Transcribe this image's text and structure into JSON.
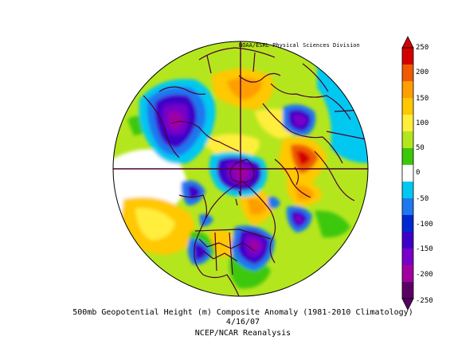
{
  "credit": "NOAA/ESRL Physical Sciences Division",
  "title": {
    "line1": "500mb Geopotential Height (m) Composite Anomaly (1981-2010 Climatology)",
    "line2": "4/16/07",
    "line3": "NCEP/NCAR Reanalysis"
  },
  "colorbar": {
    "labels": [
      "250",
      "200",
      "150",
      "100",
      "50",
      "0",
      "-50",
      "-100",
      "-150",
      "-200",
      "-250"
    ],
    "colors": [
      "#d40000",
      "#f05a00",
      "#ff9e00",
      "#ffc800",
      "#ffee3a",
      "#b4e61e",
      "#3cc80a",
      "#ffffff",
      "#00c8f0",
      "#1e78f0",
      "#0028d2",
      "#3c00c8",
      "#7800c8",
      "#a000a0",
      "#5a0064"
    ]
  },
  "map": {
    "projection": "north-polar-stereographic",
    "land_outline_color": "#4b0032",
    "anomaly_features": [
      {
        "sign": "negative",
        "strength": -200,
        "region": "Alaska / northeast Pacific"
      },
      {
        "sign": "negative",
        "strength": -180,
        "region": "Arctic / Canadian archipelago"
      },
      {
        "sign": "negative",
        "strength": -160,
        "region": "Barents / Kara Sea"
      },
      {
        "sign": "negative",
        "strength": -160,
        "region": "Eastern Canada / NE United States"
      },
      {
        "sign": "negative",
        "strength": -140,
        "region": "North Atlantic"
      },
      {
        "sign": "negative",
        "strength": -120,
        "region": "Eastern Pacific"
      },
      {
        "sign": "positive",
        "strength": 220,
        "region": "Northern Europe / Scandinavia"
      },
      {
        "sign": "positive",
        "strength": 150,
        "region": "Siberia"
      },
      {
        "sign": "positive",
        "strength": 150,
        "region": "North Pacific"
      },
      {
        "sign": "positive",
        "strength": 120,
        "region": "Greenland"
      },
      {
        "sign": "positive",
        "strength": 100,
        "region": "Western United States"
      }
    ]
  }
}
